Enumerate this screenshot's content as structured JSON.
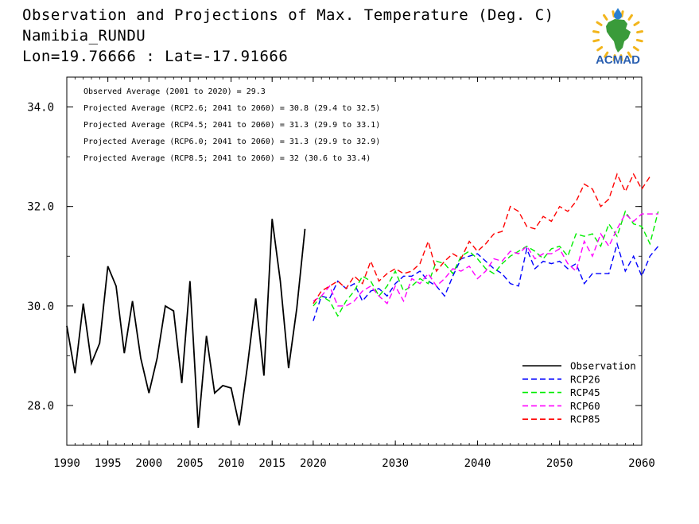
{
  "header": {
    "title": "Observation and Projections of Max. Temperature (Deg. C)",
    "location": "Namibia_RUNDU",
    "coords": "Lon=19.76666 : Lat=-17.91666"
  },
  "logo": {
    "text": "ACMAD",
    "colors": {
      "africa": "#3a9b3a",
      "rays": "#f2b51c",
      "text": "#2a5fb0",
      "drop": "#2a7fd0"
    }
  },
  "annotations": [
    "Observed Average (2001 to 2020) = 29.3",
    "Projected Average (RCP2.6; 2041 to 2060) = 30.8 (29.4 to 32.5)",
    "Projected Average (RCP4.5; 2041 to 2060) = 31.3 (29.9 to 33.1)",
    "Projected Average (RCP6.0; 2041 to 2060) = 31.3 (29.9 to 32.9)",
    "Projected Average (RCP8.5; 2041 to 2060) = 32 (30.6 to 33.4)"
  ],
  "chart_data": {
    "type": "line",
    "xlim": [
      1990,
      2060
    ],
    "ylim": [
      27.2,
      34.6
    ],
    "x_ticks": [
      {
        "v": 1990,
        "label": "1990"
      },
      {
        "v": 1995,
        "label": "1995"
      },
      {
        "v": 2000,
        "label": "2000"
      },
      {
        "v": 2005,
        "label": "2005"
      },
      {
        "v": 2010,
        "label": "2010"
      },
      {
        "v": 2015,
        "label": "2015"
      },
      {
        "v": 2020,
        "label": "2020"
      },
      {
        "v": 2030,
        "label": "2030"
      },
      {
        "v": 2040,
        "label": "2040"
      },
      {
        "v": 2050,
        "label": "2050"
      },
      {
        "v": 2060,
        "label": "2060"
      }
    ],
    "y_ticks": [
      {
        "v": 28,
        "label": "28.0"
      },
      {
        "v": 30,
        "label": "30.0"
      },
      {
        "v": 32,
        "label": "32.0"
      },
      {
        "v": 34,
        "label": "34.0"
      }
    ],
    "legend_position": "bottom-right",
    "series": [
      {
        "name": "Observation",
        "color": "#000000",
        "dash": false,
        "x_start": 1990,
        "values": [
          29.6,
          28.65,
          30.05,
          28.85,
          29.25,
          30.8,
          30.4,
          29.05,
          30.1,
          28.95,
          28.25,
          28.95,
          30.0,
          29.9,
          28.45,
          30.5,
          27.55,
          29.4,
          28.25,
          28.4,
          28.35,
          27.6,
          28.8,
          30.15,
          28.6,
          31.75,
          30.5,
          28.75,
          29.95,
          31.55
        ]
      },
      {
        "name": "RCP26",
        "color": "#0000ff",
        "dash": true,
        "x_start": 2020,
        "values": [
          29.7,
          30.2,
          30.15,
          30.5,
          30.35,
          30.45,
          30.1,
          30.3,
          30.35,
          30.2,
          30.45,
          30.6,
          30.6,
          30.7,
          30.5,
          30.4,
          30.2,
          30.6,
          30.95,
          31.0,
          31.05,
          30.9,
          30.75,
          30.65,
          30.45,
          30.4,
          31.15,
          30.75,
          30.9,
          30.85,
          30.9,
          30.75,
          30.85,
          30.45,
          30.65,
          30.65,
          30.65,
          31.25,
          30.7,
          31.0,
          30.6,
          31.0,
          31.2
        ]
      },
      {
        "name": "RCP45",
        "color": "#00ee00",
        "dash": true,
        "x_start": 2020,
        "values": [
          30.0,
          30.2,
          30.1,
          29.8,
          30.1,
          30.3,
          30.6,
          30.5,
          30.2,
          30.4,
          30.7,
          30.3,
          30.4,
          30.55,
          30.45,
          30.9,
          30.85,
          30.65,
          31.0,
          31.1,
          30.95,
          30.75,
          30.65,
          30.85,
          31.0,
          31.1,
          31.2,
          31.1,
          30.95,
          31.15,
          31.2,
          31.0,
          31.45,
          31.4,
          31.45,
          31.2,
          31.65,
          31.4,
          31.9,
          31.65,
          31.6,
          31.25,
          31.9
        ]
      },
      {
        "name": "RCP60",
        "color": "#ff00ff",
        "dash": true,
        "x_start": 2020,
        "values": [
          30.1,
          30.2,
          30.4,
          30.0,
          30.0,
          30.1,
          30.3,
          30.4,
          30.2,
          30.05,
          30.4,
          30.1,
          30.55,
          30.45,
          30.65,
          30.4,
          30.55,
          30.75,
          30.7,
          30.8,
          30.55,
          30.7,
          30.95,
          30.9,
          31.1,
          31.05,
          31.2,
          30.95,
          31.05,
          31.05,
          31.15,
          30.85,
          30.7,
          31.3,
          31.0,
          31.45,
          31.2,
          31.55,
          31.85,
          31.7,
          31.85,
          31.85,
          31.85
        ]
      },
      {
        "name": "RCP85",
        "color": "#ff0000",
        "dash": true,
        "x_start": 2020,
        "values": [
          30.05,
          30.3,
          30.4,
          30.5,
          30.35,
          30.6,
          30.45,
          30.9,
          30.5,
          30.65,
          30.75,
          30.65,
          30.7,
          30.85,
          31.3,
          30.7,
          30.9,
          31.05,
          30.95,
          31.3,
          31.1,
          31.25,
          31.45,
          31.5,
          32.0,
          31.9,
          31.6,
          31.55,
          31.8,
          31.7,
          32.0,
          31.9,
          32.1,
          32.45,
          32.35,
          32.0,
          32.15,
          32.65,
          32.3,
          32.65,
          32.35,
          32.6
        ]
      }
    ]
  }
}
